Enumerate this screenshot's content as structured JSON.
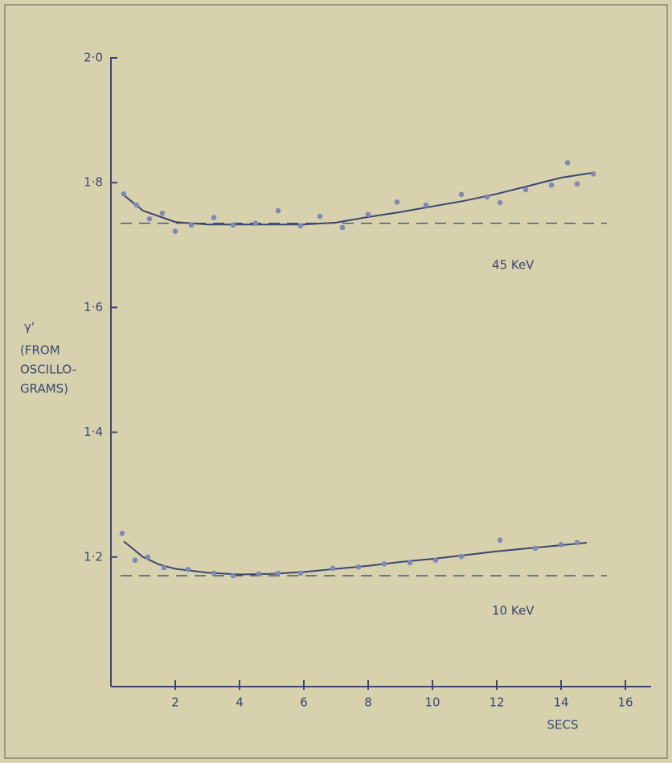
{
  "chart_data": {
    "type": "scatter",
    "y_label": [
      "γ'",
      "(FROM",
      "OSCILLO-",
      "GRAMS)"
    ],
    "x_label": "SECS",
    "xlim": [
      0,
      16.8
    ],
    "ylim": [
      1.0,
      2.0
    ],
    "xticks": [
      2,
      4,
      6,
      8,
      10,
      12,
      14,
      16
    ],
    "yticks": [
      {
        "value": 1.2,
        "label": "1·2"
      },
      {
        "value": 1.4,
        "label": "1·4"
      },
      {
        "value": 1.6,
        "label": "1·6"
      },
      {
        "value": 1.8,
        "label": "1·8"
      },
      {
        "value": 2.0,
        "label": "2·0"
      }
    ],
    "grid": false,
    "series": [
      {
        "name": "45 KeV",
        "color": "#7f89b3",
        "x": [
          0.4,
          0.8,
          1.2,
          1.6,
          2.0,
          2.5,
          3.2,
          3.8,
          4.5,
          5.2,
          5.9,
          6.5,
          7.2,
          8.0,
          8.9,
          9.8,
          10.9,
          11.7,
          12.1,
          12.9,
          13.7,
          14.2,
          14.5,
          15.0
        ],
        "values": [
          1.782,
          1.764,
          1.742,
          1.751,
          1.722,
          1.732,
          1.744,
          1.732,
          1.735,
          1.755,
          1.731,
          1.746,
          1.728,
          1.749,
          1.769,
          1.764,
          1.781,
          1.777,
          1.768,
          1.789,
          1.796,
          1.832,
          1.798,
          1.814
        ],
        "fit_x": [
          0.4,
          1,
          2,
          3,
          4,
          5,
          6,
          7,
          8,
          9,
          10,
          11,
          12,
          13,
          14,
          15
        ],
        "fit_values": [
          1.78,
          1.755,
          1.737,
          1.733,
          1.733,
          1.733,
          1.733,
          1.736,
          1.745,
          1.753,
          1.762,
          1.771,
          1.782,
          1.795,
          1.808,
          1.816
        ],
        "baseline": 1.735
      },
      {
        "name": "10 KeV",
        "color": "#7f89b3",
        "x": [
          0.35,
          0.75,
          1.15,
          1.65,
          2.4,
          3.2,
          3.8,
          4.6,
          5.2,
          5.9,
          6.9,
          7.7,
          8.5,
          9.3,
          10.1,
          10.9,
          12.1,
          13.2,
          14.0,
          14.5
        ],
        "values": [
          1.238,
          1.195,
          1.2,
          1.183,
          1.18,
          1.174,
          1.17,
          1.173,
          1.174,
          1.174,
          1.182,
          1.184,
          1.189,
          1.191,
          1.195,
          1.201,
          1.227,
          1.214,
          1.22,
          1.223
        ],
        "fit_x": [
          0.4,
          1,
          1.5,
          2,
          3,
          4,
          5,
          6,
          7,
          8,
          9,
          10,
          11,
          12,
          13,
          14,
          14.8
        ],
        "fit_values": [
          1.225,
          1.2,
          1.188,
          1.181,
          1.175,
          1.172,
          1.173,
          1.176,
          1.181,
          1.186,
          1.192,
          1.197,
          1.203,
          1.209,
          1.214,
          1.219,
          1.223
        ],
        "baseline": 1.17
      }
    ]
  }
}
